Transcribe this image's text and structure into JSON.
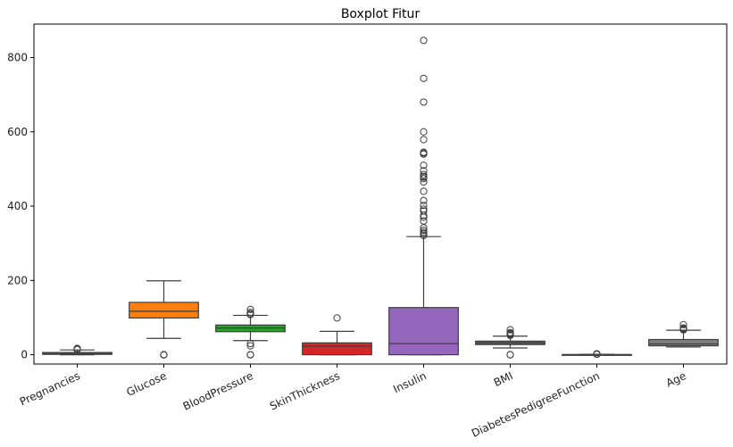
{
  "chart_data": {
    "type": "boxplot",
    "title": "Boxplot Fitur",
    "xlabel": "",
    "ylabel": "",
    "ylim": [
      -25,
      890
    ],
    "yticks": [
      0,
      200,
      400,
      600,
      800
    ],
    "grid": false,
    "categories": [
      "Pregnancies",
      "Glucose",
      "BloodPressure",
      "SkinThickness",
      "Insulin",
      "BMI",
      "DiabetesPedigreeFunction",
      "Age"
    ],
    "colors": [
      "#1f77b4",
      "#ff7f0e",
      "#2ca02c",
      "#d62728",
      "#9467bd",
      "#8c564b",
      "#e377c2",
      "#7f7f7f"
    ],
    "boxes": [
      {
        "q1": 1,
        "median": 3,
        "q3": 6,
        "whisker_low": 0,
        "whisker_high": 13,
        "outliers": [
          14,
          15,
          17
        ]
      },
      {
        "q1": 99,
        "median": 117,
        "q3": 141,
        "whisker_low": 44,
        "whisker_high": 199,
        "outliers": [
          0,
          0,
          0,
          0,
          0
        ]
      },
      {
        "q1": 62,
        "median": 72,
        "q3": 80,
        "whisker_low": 38,
        "whisker_high": 106,
        "outliers": [
          0,
          0,
          0,
          24,
          30,
          108,
          110,
          114,
          122
        ]
      },
      {
        "q1": 0,
        "median": 23,
        "q3": 32,
        "whisker_low": 0,
        "whisker_high": 63,
        "outliers": [
          99
        ]
      },
      {
        "q1": 0,
        "median": 30,
        "q3": 127,
        "whisker_low": 0,
        "whisker_high": 318,
        "outliers": [
          321,
          325,
          326,
          330,
          335,
          342,
          360,
          370,
          375,
          387,
          392,
          402,
          415,
          440,
          465,
          474,
          478,
          480,
          485,
          495,
          510,
          540,
          543,
          545,
          579,
          600,
          680,
          744,
          846
        ]
      },
      {
        "q1": 27.3,
        "median": 32,
        "q3": 36.6,
        "whisker_low": 18.2,
        "whisker_high": 50,
        "outliers": [
          0,
          0,
          52.3,
          53.2,
          55,
          57.3,
          59.4,
          67.1
        ]
      },
      {
        "q1": 0.24,
        "median": 0.37,
        "q3": 0.63,
        "whisker_low": 0.08,
        "whisker_high": 1.2,
        "outliers": [
          1.3,
          1.6,
          1.9,
          2.1,
          2.3,
          2.42
        ]
      },
      {
        "q1": 24,
        "median": 29,
        "q3": 41,
        "whisker_low": 21,
        "whisker_high": 66,
        "outliers": [
          67,
          68,
          69,
          70,
          72,
          81
        ]
      }
    ]
  }
}
